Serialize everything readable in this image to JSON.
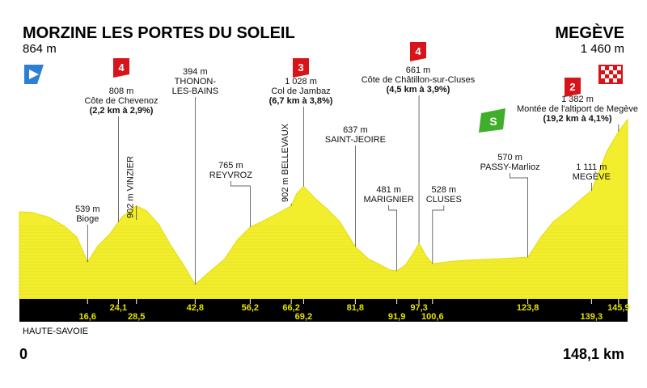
{
  "start": {
    "name": "MORZINE LES PORTES DU SOLEIL",
    "alt": "864 m",
    "km": "0",
    "region": "HAUTE-SAVOIE"
  },
  "finish": {
    "name": "MEGÈVE",
    "alt": "1 460 m",
    "km": "148,1 km"
  },
  "colors": {
    "profile": "#f2ee2e",
    "profile_edge": "#e2dc10",
    "band": "#000000",
    "km_text": "#ffd800"
  },
  "chart_data": {
    "type": "area",
    "x": [
      0,
      3,
      7,
      11,
      14,
      16.6,
      19,
      22,
      25,
      28.5,
      31,
      34,
      37,
      40,
      42.8,
      46,
      50,
      53,
      56.2,
      59,
      62,
      64,
      66.2,
      67.5,
      69.2,
      72,
      75,
      78,
      81.8,
      85,
      88,
      90,
      91.9,
      94,
      96,
      97.3,
      99,
      100.6,
      104,
      108,
      112,
      116,
      120,
      123.8,
      127,
      130,
      134,
      137,
      139.3,
      141,
      143,
      145.9,
      148.1
    ],
    "y": [
      864,
      860,
      830,
      770,
      700,
      539,
      640,
      720,
      830,
      902,
      870,
      780,
      640,
      520,
      394,
      470,
      560,
      680,
      765,
      800,
      840,
      870,
      902,
      980,
      1028,
      950,
      880,
      800,
      637,
      560,
      520,
      490,
      481,
      520,
      600,
      661,
      580,
      528,
      540,
      550,
      555,
      560,
      565,
      570,
      700,
      800,
      880,
      950,
      1000,
      1111,
      1250,
      1382,
      1460
    ],
    "ylim": [
      300,
      1500
    ],
    "xlim": [
      0,
      148.1
    ],
    "km_ticks": [
      {
        "km": 16.6,
        "label": "16,6",
        "row": 1
      },
      {
        "km": 24.1,
        "label": "24,1",
        "row": 0
      },
      {
        "km": 28.5,
        "label": "28,5",
        "row": 1
      },
      {
        "km": 42.8,
        "label": "42,8",
        "row": 0
      },
      {
        "km": 56.2,
        "label": "56,2",
        "row": 0
      },
      {
        "km": 66.2,
        "label": "66,2",
        "row": 0
      },
      {
        "km": 69.2,
        "label": "69,2",
        "row": 1
      },
      {
        "km": 81.8,
        "label": "81,8",
        "row": 0
      },
      {
        "km": 91.9,
        "label": "91,9",
        "row": 1
      },
      {
        "km": 97.3,
        "label": "97,3",
        "row": 0
      },
      {
        "km": 100.6,
        "label": "100,6",
        "row": 1
      },
      {
        "km": 123.8,
        "label": "123,8",
        "row": 0
      },
      {
        "km": 139.3,
        "label": "139,3",
        "row": 1
      },
      {
        "km": 145.9,
        "label": "145,9",
        "row": 0
      }
    ],
    "climbs": [
      {
        "cat": "4",
        "km": 24.1,
        "alt": "808 m",
        "name": "Côte de Chevenoz",
        "detail": "(2,2 km à 2,9%)",
        "color": "#d7141a"
      },
      {
        "cat": "3",
        "km": 69.2,
        "alt": "1 028 m",
        "name": "Col de Jambaz",
        "detail": "(6,7 km à 3,8%)",
        "color": "#d7141a"
      },
      {
        "cat": "4",
        "km": 97.3,
        "alt": "661 m",
        "name": "Côte de Châtillon-sur-Cluses",
        "detail": "(4,5 km à 3,9%)",
        "color": "#d7141a"
      },
      {
        "cat": "2",
        "km": 145.9,
        "alt": "1 382 m",
        "name": "Montée de l'altiport de Megève",
        "detail": "(19,2 km à 4,1%)",
        "color": "#d7141a"
      }
    ],
    "places": [
      {
        "km": 16.6,
        "lines": [
          "539 m",
          "Bioge"
        ]
      },
      {
        "km": 28.5,
        "lines": [
          "902 m VINZIER"
        ],
        "vertical": true
      },
      {
        "km": 42.8,
        "lines": [
          "394 m",
          "THONON-",
          "LES-BAINS"
        ]
      },
      {
        "km": 56.2,
        "lines": [
          "765 m",
          "REYVROZ"
        ]
      },
      {
        "km": 66.2,
        "lines": [
          "902 m BELLEVAUX"
        ],
        "vertical": true
      },
      {
        "km": 81.8,
        "lines": [
          "637 m",
          "SAINT-JEOIRE"
        ]
      },
      {
        "km": 91.9,
        "lines": [
          "481 m",
          "MARIGNIER"
        ]
      },
      {
        "km": 100.6,
        "lines": [
          "528 m",
          "CLUSES"
        ]
      },
      {
        "km": 123.8,
        "lines": [
          "570 m",
          "PASSY-Marlioz"
        ]
      },
      {
        "km": 139.3,
        "lines": [
          "1 111 m",
          "MEGÈVE"
        ]
      }
    ],
    "sprint": {
      "km": 123.8,
      "label": "S",
      "color": "#3fae2a"
    }
  }
}
